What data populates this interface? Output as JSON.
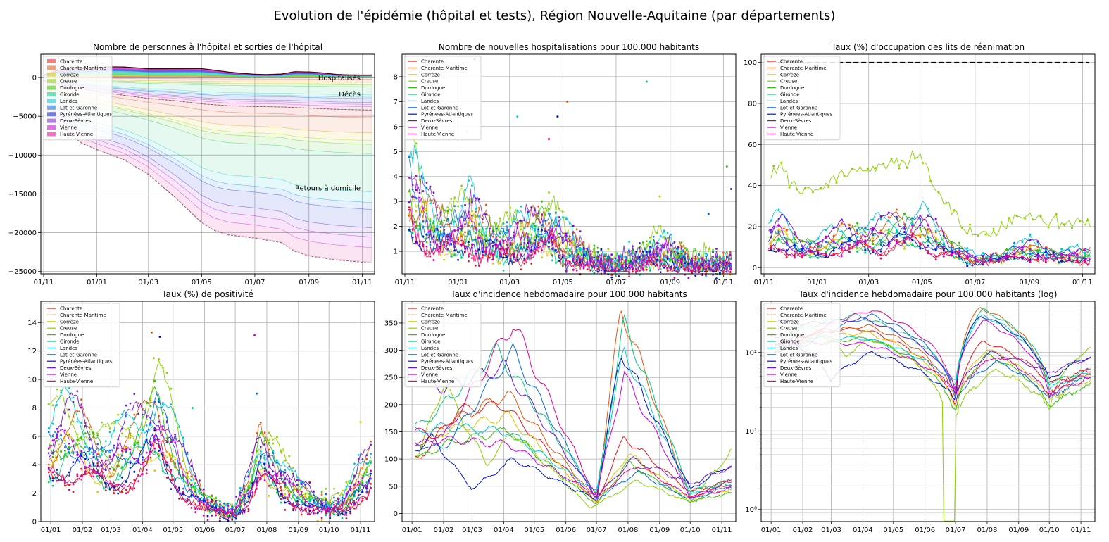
{
  "suptitle": "Evolution de l'épidémie (hôpital et tests), Région Nouvelle-Aquitaine (par départements)",
  "departments": [
    "Charente",
    "Charente-Maritime",
    "Corrèze",
    "Creuse",
    "Dordogne",
    "Gironde",
    "Landes",
    "Lot-et-Garonne",
    "Pyrénées-Atlantiques",
    "Deux-Sèvres",
    "Vienne",
    "Haute-Vienne"
  ],
  "colors": [
    "#e31a1c",
    "#e6550d",
    "#d9c600",
    "#8cd200",
    "#33c100",
    "#00c87a",
    "#00c7d6",
    "#0a6ee0",
    "#0014d0",
    "#6a16d6",
    "#c800d8",
    "#e0008c"
  ],
  "chart_data": [
    {
      "type": "area",
      "title": "Nombre de personnes à l'hôpital et sorties de l'hôpital",
      "x_ticks": [
        "01/11",
        "01/01",
        "01/03",
        "01/05",
        "01/07",
        "01/09",
        "01/11"
      ],
      "y_ticks": [
        0,
        -5000,
        -10000,
        -15000,
        -20000,
        -25000
      ],
      "ylim": [
        -25300,
        3000
      ],
      "x_range": [
        "2020-11-01",
        "2021-11-12"
      ],
      "annotations": [
        "Hospitalisés",
        "Décès",
        "Retours à domicile"
      ],
      "hospitalises_total": [
        [
          "2020-11-01",
          300
        ],
        [
          "2020-11-15",
          850
        ],
        [
          "2020-12-01",
          1150
        ],
        [
          "2020-12-15",
          1200
        ],
        [
          "2021-01-01",
          1280
        ],
        [
          "2021-01-15",
          1380
        ],
        [
          "2021-02-01",
          1350
        ],
        [
          "2021-02-15",
          1250
        ],
        [
          "2021-03-01",
          1120
        ],
        [
          "2021-04-01",
          1130
        ],
        [
          "2021-05-01",
          1150
        ],
        [
          "2021-05-15",
          950
        ],
        [
          "2021-06-01",
          700
        ],
        [
          "2021-06-15",
          550
        ],
        [
          "2021-07-01",
          420
        ],
        [
          "2021-07-15",
          380
        ],
        [
          "2021-08-01",
          450
        ],
        [
          "2021-08-15",
          750
        ],
        [
          "2021-09-01",
          720
        ],
        [
          "2021-09-15",
          620
        ],
        [
          "2021-10-01",
          420
        ],
        [
          "2021-10-15",
          340
        ],
        [
          "2021-11-01",
          320
        ],
        [
          "2021-11-12",
          330
        ]
      ],
      "deces_total": [
        [
          "2020-11-01",
          -500
        ],
        [
          "2020-12-01",
          -1200
        ],
        [
          "2021-01-01",
          -1800
        ],
        [
          "2021-02-01",
          -2300
        ],
        [
          "2021-03-01",
          -2700
        ],
        [
          "2021-04-01",
          -3000
        ],
        [
          "2021-05-01",
          -3400
        ],
        [
          "2021-06-01",
          -3650
        ],
        [
          "2021-07-01",
          -3750
        ],
        [
          "2021-08-01",
          -3800
        ],
        [
          "2021-09-01",
          -3950
        ],
        [
          "2021-10-01",
          -4100
        ],
        [
          "2021-11-12",
          -4200
        ]
      ],
      "retours_domicile_total": [
        [
          "2020-11-01",
          -3500
        ],
        [
          "2020-11-15",
          -5500
        ],
        [
          "2020-12-01",
          -7300
        ],
        [
          "2020-12-15",
          -8500
        ],
        [
          "2021-01-01",
          -9300
        ],
        [
          "2021-02-01",
          -10600
        ],
        [
          "2021-03-01",
          -12500
        ],
        [
          "2021-04-01",
          -15500
        ],
        [
          "2021-05-01",
          -18700
        ],
        [
          "2021-05-15",
          -19700
        ],
        [
          "2021-06-01",
          -20300
        ],
        [
          "2021-07-01",
          -20700
        ],
        [
          "2021-08-01",
          -21300
        ],
        [
          "2021-08-15",
          -22400
        ],
        [
          "2021-09-01",
          -23000
        ],
        [
          "2021-10-01",
          -23500
        ],
        [
          "2021-11-01",
          -23800
        ],
        [
          "2021-11-12",
          -23900
        ]
      ]
    },
    {
      "type": "scatter",
      "title": "Nombre de nouvelles hospitalisations pour 100.000 habitants",
      "x_ticks": [
        "01/11",
        "01/01",
        "01/03",
        "01/05",
        "01/07",
        "01/09",
        "01/11"
      ],
      "y_ticks": [
        1,
        2,
        3,
        4,
        5,
        6,
        7,
        8
      ],
      "ylim": [
        0.1,
        8.9
      ],
      "x_range": [
        "2020-11-01",
        "2021-11-12"
      ],
      "envelope": [
        [
          "2020-11-05",
          3.5
        ],
        [
          "2020-11-20",
          2.5
        ],
        [
          "2020-12-10",
          1.8
        ],
        [
          "2021-01-01",
          1.8
        ],
        [
          "2021-01-15",
          2.2
        ],
        [
          "2021-02-01",
          1.5
        ],
        [
          "2021-03-01",
          1.3
        ],
        [
          "2021-04-01",
          1.8
        ],
        [
          "2021-04-15",
          1.9
        ],
        [
          "2021-05-01",
          1.4
        ],
        [
          "2021-05-15",
          1.0
        ],
        [
          "2021-06-01",
          0.7
        ],
        [
          "2021-07-01",
          0.4
        ],
        [
          "2021-08-01",
          0.8
        ],
        [
          "2021-08-15",
          1.0
        ],
        [
          "2021-09-01",
          0.9
        ],
        [
          "2021-10-01",
          0.5
        ],
        [
          "2021-11-12",
          0.5
        ]
      ],
      "outliers": [
        [
          "2021-01-20",
          8.7
        ],
        [
          "2021-08-05",
          7.8
        ],
        [
          "2020-11-20",
          6.1
        ],
        [
          "2021-01-11",
          5.8
        ],
        [
          "2021-04-25",
          6.4
        ],
        [
          "2021-05-06",
          7.0
        ],
        [
          "2021-03-10",
          6.4
        ],
        [
          "2021-04-15",
          5.5
        ],
        [
          "2021-11-05",
          4.4
        ],
        [
          "2021-11-10",
          3.5
        ],
        [
          "2021-08-20",
          3.2
        ],
        [
          "2021-10-15",
          2.5
        ]
      ]
    },
    {
      "type": "line",
      "title": "Taux (%) d'occupation des lits de réanimation",
      "x_ticks": [
        "01/11",
        "01/01",
        "01/03",
        "01/05",
        "01/07",
        "01/09",
        "01/11"
      ],
      "y_ticks": [
        0,
        20,
        40,
        60,
        80,
        100
      ],
      "ylim": [
        -3,
        104
      ],
      "x_range": [
        "2020-11-01",
        "2021-11-12"
      ],
      "reference_line": 100,
      "envelope": [
        [
          "2020-11-05",
          15
        ],
        [
          "2020-11-20",
          18
        ],
        [
          "2020-12-10",
          10
        ],
        [
          "2021-01-01",
          10
        ],
        [
          "2021-02-01",
          15
        ],
        [
          "2021-03-01",
          15
        ],
        [
          "2021-04-01",
          18
        ],
        [
          "2021-05-01",
          20
        ],
        [
          "2021-05-15",
          15
        ],
        [
          "2021-06-01",
          10
        ],
        [
          "2021-07-01",
          4
        ],
        [
          "2021-08-01",
          5
        ],
        [
          "2021-08-15",
          8
        ],
        [
          "2021-09-01",
          9
        ],
        [
          "2021-10-01",
          6
        ],
        [
          "2021-11-12",
          6
        ]
      ],
      "peak_series": "Creuse",
      "peaks": [
        [
          "2020-11-10",
          50
        ],
        [
          "2021-04-25",
          57
        ],
        [
          "2021-06-01",
          28
        ],
        [
          "2021-07-01",
          21
        ],
        [
          "2021-11-12",
          32
        ]
      ]
    },
    {
      "type": "scatter",
      "title": "Taux (%) de positivité",
      "x_ticks": [
        "01/01",
        "01/02",
        "01/03",
        "01/04",
        "01/05",
        "01/06",
        "01/07",
        "01/08",
        "01/09",
        "01/10",
        "01/11"
      ],
      "y_ticks": [
        0,
        2,
        4,
        6,
        8,
        10,
        12,
        14
      ],
      "ylim": [
        0,
        15.5
      ],
      "x_range": [
        "2020-12-25",
        "2021-11-12"
      ],
      "envelope": [
        [
          "2021-01-01",
          5.0
        ],
        [
          "2021-01-15",
          6.0
        ],
        [
          "2021-02-01",
          5.8
        ],
        [
          "2021-02-15",
          4.5
        ],
        [
          "2021-03-01",
          4.0
        ],
        [
          "2021-03-15",
          5.0
        ],
        [
          "2021-04-01",
          6.0
        ],
        [
          "2021-04-15",
          7.5
        ],
        [
          "2021-05-01",
          5.0
        ],
        [
          "2021-05-15",
          3.0
        ],
        [
          "2021-06-01",
          1.5
        ],
        [
          "2021-06-15",
          0.8
        ],
        [
          "2021-07-01",
          0.6
        ],
        [
          "2021-07-15",
          2.5
        ],
        [
          "2021-07-25",
          5.0
        ],
        [
          "2021-08-01",
          4.5
        ],
        [
          "2021-08-15",
          3.0
        ],
        [
          "2021-09-01",
          2.0
        ],
        [
          "2021-09-15",
          1.5
        ],
        [
          "2021-10-01",
          1.0
        ],
        [
          "2021-10-15",
          1.2
        ],
        [
          "2021-11-01",
          3.0
        ],
        [
          "2021-11-12",
          4.0
        ]
      ],
      "outliers": [
        [
          "2021-04-10",
          13.3
        ],
        [
          "2021-04-18",
          13.0
        ],
        [
          "2021-04-12",
          11.5
        ],
        [
          "2021-07-20",
          13.1
        ],
        [
          "2021-05-20",
          8.0
        ],
        [
          "2021-01-20",
          10.0
        ],
        [
          "2021-07-22",
          9.0
        ],
        [
          "2021-11-01",
          7.0
        ]
      ]
    },
    {
      "type": "line",
      "title": "Taux d'incidence hebdomadaire pour 100.000 habitants",
      "x_ticks": [
        "01/01",
        "01/02",
        "01/03",
        "01/04",
        "01/05",
        "01/06",
        "01/07",
        "01/08",
        "01/09",
        "01/10",
        "01/11"
      ],
      "y_ticks": [
        0,
        50,
        100,
        150,
        200,
        250,
        300,
        350
      ],
      "ylim": [
        -15,
        390
      ],
      "x_range": [
        "2020-12-25",
        "2021-11-12"
      ],
      "series_peaks": [
        {
          "name": "Charente",
          "peaks": [
            [
              "2021-01-08",
              100
            ],
            [
              "2021-02-15",
              190
            ],
            [
              "2021-04-01",
              200
            ],
            [
              "2021-07-01",
              20
            ],
            [
              "2021-07-28",
              140
            ],
            [
              "2021-10-01",
              40
            ],
            [
              "2021-11-10",
              60
            ]
          ]
        },
        {
          "name": "Charente-Maritime",
          "peaks": [
            [
              "2021-01-08",
              130
            ],
            [
              "2021-02-10",
              170
            ],
            [
              "2021-04-05",
              220
            ],
            [
              "2021-07-01",
              25
            ],
            [
              "2021-07-25",
              378
            ],
            [
              "2021-10-01",
              30
            ],
            [
              "2021-11-10",
              55
            ]
          ]
        },
        {
          "name": "Corrèze",
          "peaks": [
            [
              "2021-01-08",
              120
            ],
            [
              "2021-02-01",
              150
            ],
            [
              "2021-04-05",
              180
            ],
            [
              "2021-07-01",
              20
            ],
            [
              "2021-08-01",
              110
            ],
            [
              "2021-10-01",
              25
            ],
            [
              "2021-11-10",
              45
            ]
          ]
        },
        {
          "name": "Creuse",
          "peaks": [
            [
              "2021-01-08",
              110
            ],
            [
              "2021-02-01",
              240
            ],
            [
              "2021-03-15",
              90
            ],
            [
              "2021-04-10",
              150
            ],
            [
              "2021-06-25",
              10
            ],
            [
              "2021-08-10",
              60
            ],
            [
              "2021-10-01",
              20
            ],
            [
              "2021-11-10",
              115
            ]
          ]
        },
        {
          "name": "Gironde",
          "peaks": [
            [
              "2021-01-08",
              160
            ],
            [
              "2021-02-01",
              200
            ],
            [
              "2021-03-25",
              300
            ],
            [
              "2021-07-01",
              35
            ],
            [
              "2021-07-28",
              350
            ],
            [
              "2021-10-01",
              40
            ],
            [
              "2021-11-10",
              60
            ]
          ]
        },
        {
          "name": "Landes",
          "peaks": [
            [
              "2021-01-08",
              150
            ],
            [
              "2021-02-01",
              160
            ],
            [
              "2021-04-05",
              150
            ],
            [
              "2021-07-01",
              40
            ],
            [
              "2021-07-28",
              300
            ],
            [
              "2021-10-01",
              35
            ],
            [
              "2021-11-10",
              55
            ]
          ]
        },
        {
          "name": "Pyrénées-Atlantiques",
          "peaks": [
            [
              "2021-01-08",
              120
            ],
            [
              "2021-01-20",
              140
            ],
            [
              "2021-03-01",
              45
            ],
            [
              "2021-04-10",
              100
            ],
            [
              "2021-07-01",
              25
            ],
            [
              "2021-07-25",
              300
            ],
            [
              "2021-10-01",
              45
            ],
            [
              "2021-11-10",
              90
            ]
          ]
        },
        {
          "name": "Deux-Sèvres",
          "peaks": [
            [
              "2021-01-08",
              260
            ],
            [
              "2021-02-01",
              230
            ],
            [
              "2021-04-01",
              270
            ],
            [
              "2021-07-01",
              30
            ],
            [
              "2021-08-05",
              100
            ],
            [
              "2021-10-01",
              55
            ],
            [
              "2021-11-10",
              85
            ]
          ]
        },
        {
          "name": "Haute-Vienne",
          "peaks": [
            [
              "2021-01-08",
              150
            ],
            [
              "2021-02-01",
              140
            ],
            [
              "2021-04-10",
              350
            ],
            [
              "2021-07-01",
              30
            ],
            [
              "2021-08-10",
              90
            ],
            [
              "2021-10-01",
              30
            ],
            [
              "2021-11-10",
              60
            ]
          ]
        }
      ]
    },
    {
      "type": "line",
      "title": "Taux d'incidence hebdomadaire pour 100.000 habitants (log)",
      "x_ticks": [
        "01/01",
        "01/02",
        "01/03",
        "01/04",
        "01/05",
        "01/06",
        "01/07",
        "01/08",
        "01/09",
        "01/10",
        "01/11"
      ],
      "y_ticks": [
        "10⁰",
        "10¹",
        "10²"
      ],
      "ylim": [
        0.7,
        450
      ],
      "yscale": "log",
      "x_range": [
        "2020-12-25",
        "2021-11-12"
      ],
      "series_peaks": "same as Taux d'incidence hebdomadaire pour 100.000 habitants"
    }
  ],
  "legend_position": "upper left"
}
